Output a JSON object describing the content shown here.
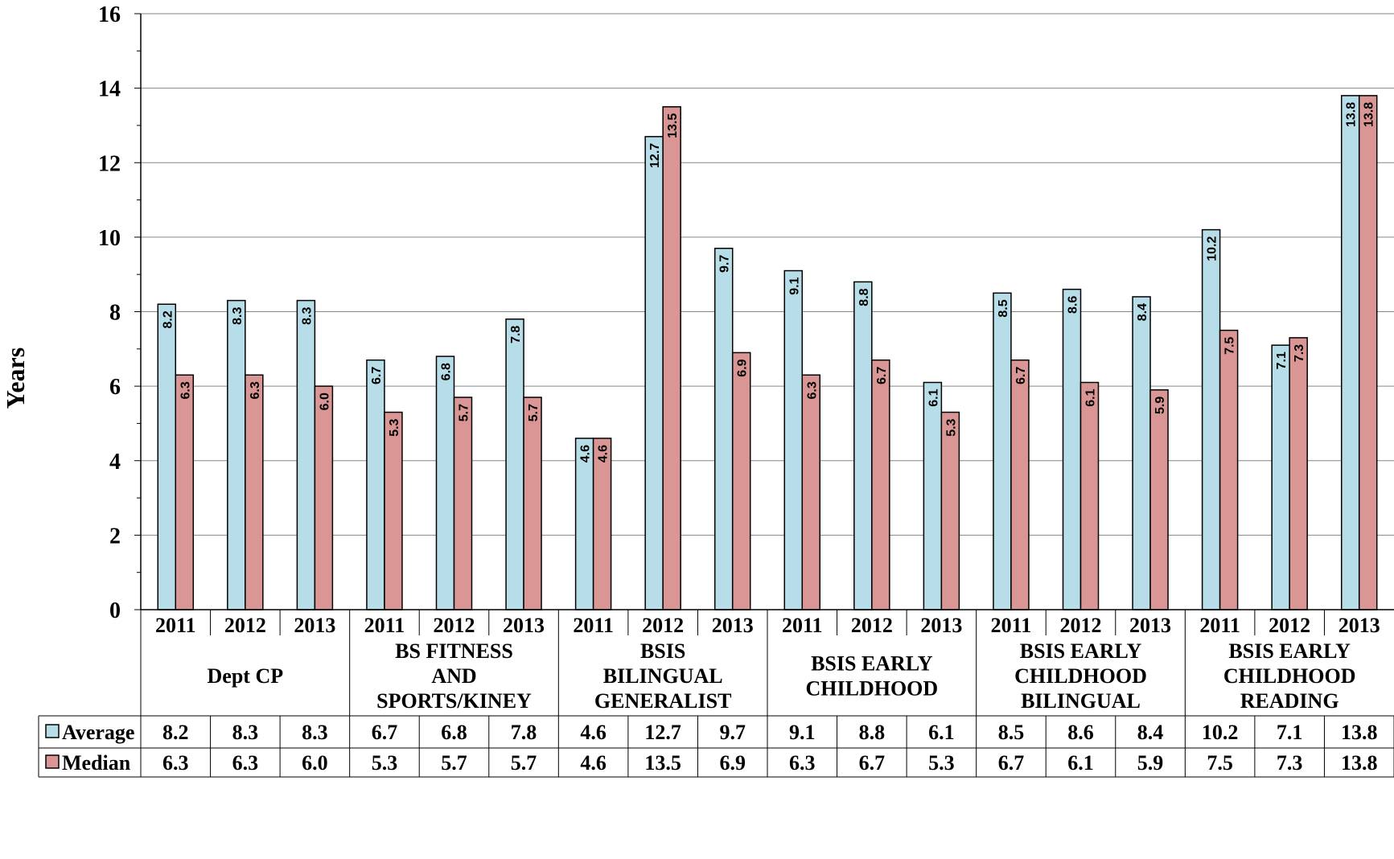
{
  "chart_data": {
    "type": "bar",
    "ylabel": "Years",
    "ylim": [
      0,
      16
    ],
    "y_ticks": [
      "0",
      "2",
      "4",
      "6",
      "8",
      "10",
      "12",
      "14",
      "16"
    ],
    "grid": true,
    "legend": "table-rows",
    "categories": [
      "2011",
      "2012",
      "2013",
      "2011",
      "2012",
      "2013",
      "2011",
      "2012",
      "2013",
      "2011",
      "2012",
      "2013",
      "2011",
      "2012",
      "2013",
      "2011",
      "2012",
      "2013"
    ],
    "groups": [
      {
        "lines": [
          "Dept CP"
        ]
      },
      {
        "lines": [
          "BS FITNESS",
          "AND",
          "SPORTS/KINEY"
        ]
      },
      {
        "lines": [
          "BSIS",
          "BILINGUAL",
          "GENERALIST"
        ]
      },
      {
        "lines": [
          "BSIS EARLY",
          "CHILDHOOD"
        ]
      },
      {
        "lines": [
          "BSIS EARLY",
          "CHILDHOOD",
          "BILINGUAL"
        ]
      },
      {
        "lines": [
          "BSIS EARLY",
          "CHILDHOOD",
          "READING"
        ]
      }
    ],
    "series": [
      {
        "name": "Average",
        "color": "#b7dee8",
        "values": [
          8.2,
          8.3,
          8.3,
          6.7,
          6.8,
          7.8,
          4.6,
          12.7,
          9.7,
          9.1,
          8.8,
          6.1,
          8.5,
          8.6,
          8.4,
          10.2,
          7.1,
          13.8
        ],
        "labels": [
          "8.2",
          "8.3",
          "8.3",
          "6.7",
          "6.8",
          "7.8",
          "4.6",
          "12.7",
          "9.7",
          "9.1",
          "8.8",
          "6.1",
          "8.5",
          "8.6",
          "8.4",
          "10.2",
          "7.1",
          "13.8"
        ]
      },
      {
        "name": "Median",
        "color": "#da9694",
        "values": [
          6.3,
          6.3,
          6.0,
          5.3,
          5.7,
          5.7,
          4.6,
          13.5,
          6.9,
          6.3,
          6.7,
          5.3,
          6.7,
          6.1,
          5.9,
          7.5,
          7.3,
          13.8
        ],
        "labels": [
          "6.3",
          "6.3",
          "6.0",
          "5.3",
          "5.7",
          "5.7",
          "4.6",
          "13.5",
          "6.9",
          "6.3",
          "6.7",
          "5.3",
          "6.7",
          "6.1",
          "5.9",
          "7.5",
          "7.3",
          "13.8"
        ]
      }
    ]
  }
}
